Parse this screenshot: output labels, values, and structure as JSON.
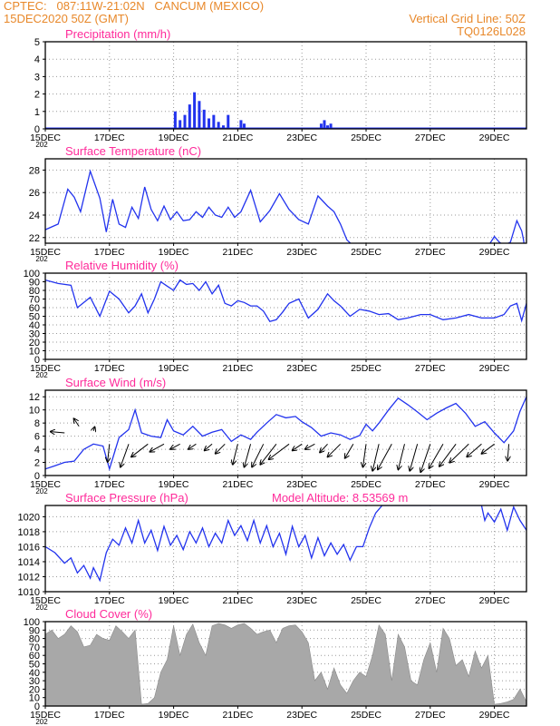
{
  "header": {
    "line1": "CPTEC:   087:11W-21:02N   CANCUM (MEXICO)",
    "line2": "15DEC2020 50Z (GMT)",
    "vgrid": "Vertical Grid Line: 50Z",
    "code": "TQ0126L028"
  },
  "colors": {
    "header": "#e8882a",
    "title": "#ff2a9a",
    "series": "#2233ee",
    "cloud": "#a8a8a8",
    "wind": "#000000"
  },
  "x_axis": {
    "labels": [
      "15DEC",
      "17DEC",
      "19DEC",
      "21DEC",
      "23DEC",
      "25DEC",
      "27DEC",
      "29DEC"
    ],
    "year_fragment": "202"
  },
  "chart_data": [
    {
      "id": "precip",
      "type": "bar",
      "title": "Precipitation (mm/h)",
      "ylim": [
        0,
        5
      ],
      "yticks": [
        0,
        1,
        2,
        3,
        4,
        5
      ],
      "x": [
        4.05,
        4.2,
        4.35,
        4.5,
        4.65,
        4.8,
        4.95,
        5.1,
        5.25,
        5.4,
        5.55,
        5.7,
        6.1,
        6.2,
        6.3,
        8.6,
        8.7,
        8.8,
        8.9
      ],
      "values": [
        1.0,
        0.5,
        0.8,
        1.4,
        2.1,
        1.6,
        1.1,
        0.6,
        0.8,
        0.4,
        0.2,
        0.8,
        0.5,
        0.3,
        0.0,
        0.3,
        0.5,
        0.2,
        0.3
      ]
    },
    {
      "id": "temp",
      "type": "line",
      "title": "Surface Temperature (nC)",
      "ylim": [
        21.5,
        29
      ],
      "yticks": [
        22,
        24,
        26,
        28
      ],
      "x": [
        0,
        0.4,
        0.7,
        0.9,
        1.1,
        1.4,
        1.7,
        1.9,
        2.1,
        2.3,
        2.5,
        2.7,
        2.9,
        3.1,
        3.3,
        3.5,
        3.7,
        3.9,
        4.1,
        4.3,
        4.5,
        4.7,
        4.9,
        5.1,
        5.3,
        5.5,
        5.7,
        5.9,
        6.1,
        6.4,
        6.7,
        7.0,
        7.3,
        7.6,
        7.9,
        8.2,
        8.5,
        8.8,
        9.0,
        9.2,
        9.4,
        9.7,
        10.0,
        10.3,
        10.6,
        10.8,
        10.9,
        11.3,
        11.5,
        12.0,
        12.5,
        13.0,
        13.5,
        13.8,
        14.0,
        14.15,
        14.3,
        14.5,
        14.7,
        14.85,
        14.9,
        14.95
      ],
      "values": [
        22.7,
        23.2,
        26.3,
        25.6,
        24.3,
        27.9,
        25.5,
        22.5,
        25.4,
        23.2,
        22.9,
        24.7,
        23.7,
        26.5,
        24.5,
        23.5,
        24.8,
        23.6,
        24.3,
        23.5,
        23.6,
        24.3,
        23.8,
        24.7,
        24.0,
        23.8,
        24.7,
        23.8,
        24.3,
        26.2,
        23.4,
        24.4,
        25.9,
        24.5,
        23.6,
        23.2,
        25.7,
        24.8,
        24.3,
        23.2,
        21.8,
        21.0,
        21.4,
        21.2,
        20.8,
        21.2,
        20.8,
        20.6,
        20.4,
        20.2,
        20.5,
        20.4,
        20.6,
        21.2,
        22.1,
        21.6,
        21.3,
        21.6,
        23.5,
        22.6,
        21.9,
        21.0
      ]
    },
    {
      "id": "rh",
      "type": "line",
      "title": "Relative Humidity (%)",
      "ylim": [
        0,
        100
      ],
      "yticks": [
        0,
        10,
        20,
        30,
        40,
        50,
        60,
        70,
        80,
        90,
        100
      ],
      "x": [
        0,
        0.4,
        0.8,
        1.0,
        1.4,
        1.7,
        2.0,
        2.3,
        2.6,
        2.8,
        3.0,
        3.2,
        3.4,
        3.6,
        3.8,
        4.0,
        4.2,
        4.4,
        4.6,
        4.8,
        5.0,
        5.2,
        5.4,
        5.6,
        5.8,
        6.0,
        6.2,
        6.4,
        6.6,
        6.8,
        7.0,
        7.2,
        7.4,
        7.6,
        7.9,
        8.2,
        8.5,
        8.8,
        9.0,
        9.2,
        9.5,
        9.8,
        10.1,
        10.4,
        10.7,
        11.0,
        11.3,
        11.7,
        12.0,
        12.4,
        12.8,
        13.2,
        13.6,
        14.0,
        14.3,
        14.5,
        14.7,
        14.85,
        15.0
      ],
      "values": [
        92,
        88,
        86,
        60,
        72,
        50,
        79,
        70,
        54,
        62,
        76,
        54,
        70,
        90,
        85,
        80,
        92,
        87,
        88,
        80,
        90,
        76,
        86,
        65,
        62,
        68,
        66,
        62,
        62,
        56,
        44,
        46,
        55,
        65,
        70,
        48,
        58,
        76,
        68,
        62,
        50,
        58,
        56,
        52,
        53,
        46,
        48,
        52,
        52,
        46,
        48,
        52,
        48,
        48,
        52,
        62,
        65,
        45,
        65
      ]
    },
    {
      "id": "wind",
      "type": "line",
      "title": "Surface Wind (m/s)",
      "ylim": [
        0,
        13
      ],
      "yticks": [
        0,
        2,
        4,
        6,
        8,
        10,
        12
      ],
      "x": [
        0,
        0.3,
        0.6,
        0.9,
        1.2,
        1.5,
        1.8,
        2.0,
        2.3,
        2.6,
        2.8,
        3.0,
        3.3,
        3.6,
        3.8,
        4.0,
        4.3,
        4.6,
        4.9,
        5.2,
        5.5,
        5.8,
        6.1,
        6.4,
        6.6,
        6.9,
        7.2,
        7.5,
        7.8,
        8.0,
        8.3,
        8.6,
        8.9,
        9.2,
        9.5,
        9.8,
        10.0,
        10.2,
        10.4,
        10.7,
        11.0,
        11.3,
        11.6,
        11.9,
        12.2,
        12.5,
        12.8,
        13.1,
        13.4,
        13.7,
        14.0,
        14.3,
        14.6,
        14.8,
        15.0
      ],
      "values": [
        1.0,
        1.5,
        2.0,
        2.2,
        4.0,
        4.8,
        4.5,
        1.0,
        5.8,
        7.0,
        10.0,
        6.5,
        6.0,
        5.8,
        8.5,
        6.8,
        6.2,
        7.5,
        6.0,
        6.6,
        7.0,
        5.2,
        6.2,
        5.5,
        6.6,
        8.0,
        9.3,
        8.8,
        9.0,
        8.2,
        7.3,
        6.0,
        6.5,
        6.2,
        5.5,
        6.1,
        7.8,
        6.8,
        8.0,
        10.0,
        11.8,
        10.8,
        9.7,
        8.5,
        9.5,
        10.3,
        11.0,
        9.5,
        7.5,
        8.2,
        6.5,
        5.0,
        6.8,
        9.8,
        12.0
      ],
      "arrows_x": [
        0.6,
        1.05,
        1.5,
        2.0,
        2.6,
        3.2,
        3.7,
        4.2,
        4.7,
        5.2,
        5.6,
        6.0,
        6.4,
        6.8,
        7.2,
        7.6,
        8.0,
        8.4,
        8.8,
        9.2,
        9.6,
        10.0,
        10.4,
        10.8,
        11.2,
        11.6,
        12.0,
        12.4,
        12.8,
        13.2,
        13.6,
        14.0,
        14.45
      ],
      "arrows_y": [
        6.5,
        7.5,
        6.8,
        4.8,
        4.8,
        4.8,
        4.8,
        4.8,
        4.8,
        4.8,
        4.8,
        4.8,
        4.8,
        4.8,
        4.8,
        4.8,
        4.8,
        4.8,
        4.8,
        4.8,
        4.8,
        4.8,
        4.8,
        4.8,
        4.8,
        4.8,
        4.8,
        4.8,
        4.8,
        4.8,
        4.8,
        4.8,
        4.8
      ],
      "arrows_u": [
        -2.2,
        -0.8,
        0.2,
        -0.3,
        -1.3,
        -2.6,
        -2.2,
        -1.5,
        -1.2,
        -1.2,
        -1.5,
        -0.8,
        -1.0,
        -1.8,
        -2.5,
        -3.2,
        -1.5,
        -1.5,
        -1.2,
        -2.0,
        -1.3,
        -0.5,
        -1.0,
        -2.2,
        -1.0,
        -1.2,
        -1.5,
        -2.2,
        -2.6,
        -3.0,
        -2.3,
        -2.0,
        -0.2
      ],
      "arrows_v": [
        0.2,
        1.2,
        0.6,
        -2.8,
        -3.6,
        -2.0,
        -1.2,
        -0.8,
        -0.8,
        -1.0,
        -1.5,
        -3.2,
        -3.6,
        -3.6,
        -3.2,
        -2.4,
        -1.0,
        -0.8,
        -1.3,
        -2.0,
        -2.2,
        -3.6,
        -4.2,
        -4.0,
        -4.0,
        -4.2,
        -4.4,
        -3.8,
        -3.5,
        -2.9,
        -2.0,
        -1.5,
        -2.6
      ]
    },
    {
      "id": "press",
      "type": "line",
      "title": "Surface Pressure (hPa)",
      "subtitle": "Model Altitude: 8.53569 m",
      "ylim": [
        1010,
        1021.5
      ],
      "yticks": [
        1010,
        1012,
        1014,
        1016,
        1018,
        1020
      ],
      "x": [
        0,
        0.3,
        0.6,
        0.8,
        1.0,
        1.2,
        1.4,
        1.5,
        1.7,
        1.9,
        2.1,
        2.3,
        2.5,
        2.7,
        2.9,
        3.1,
        3.3,
        3.5,
        3.7,
        3.9,
        4.1,
        4.3,
        4.5,
        4.7,
        4.9,
        5.1,
        5.3,
        5.5,
        5.7,
        5.9,
        6.1,
        6.3,
        6.5,
        6.7,
        6.9,
        7.1,
        7.3,
        7.5,
        7.7,
        7.9,
        8.1,
        8.3,
        8.5,
        8.7,
        8.9,
        9.1,
        9.3,
        9.5,
        9.7,
        9.9,
        10.1,
        10.3,
        10.5,
        13.6,
        13.7,
        13.8,
        14.0,
        14.2,
        14.4,
        14.6,
        14.8,
        15.0
      ],
      "values": [
        1016.0,
        1015.2,
        1013.8,
        1014.5,
        1012.5,
        1013.5,
        1011.8,
        1013.2,
        1011.5,
        1015.2,
        1017.0,
        1016.2,
        1018.5,
        1016.5,
        1019.5,
        1016.5,
        1018.2,
        1015.5,
        1018.7,
        1016.2,
        1017.5,
        1015.6,
        1018.0,
        1016.5,
        1018.5,
        1016.0,
        1017.8,
        1016.5,
        1019.5,
        1017.5,
        1018.8,
        1016.8,
        1019.5,
        1016.5,
        1018.8,
        1016.0,
        1017.8,
        1015.0,
        1018.7,
        1016.0,
        1017.5,
        1014.5,
        1017.2,
        1014.8,
        1016.5,
        1015.0,
        1016.3,
        1014.2,
        1016.0,
        1016.0,
        1018.5,
        1020.5,
        1021.5,
        1021.5,
        1019.5,
        1020.5,
        1019.3,
        1021.0,
        1018.2,
        1021.3,
        1019.5,
        1018.2
      ]
    },
    {
      "id": "cloud",
      "type": "area",
      "title": "Cloud Cover (%)",
      "ylim": [
        0,
        100
      ],
      "yticks": [
        0,
        10,
        20,
        30,
        40,
        50,
        60,
        70,
        80,
        90,
        100
      ],
      "x": [
        0,
        0.2,
        0.4,
        0.6,
        0.8,
        1.0,
        1.2,
        1.4,
        1.6,
        1.8,
        2.0,
        2.2,
        2.4,
        2.6,
        2.8,
        3.0,
        3.2,
        3.4,
        3.6,
        3.8,
        4.0,
        4.2,
        4.4,
        4.6,
        4.8,
        5.0,
        5.2,
        5.4,
        5.6,
        5.8,
        6.0,
        6.2,
        6.4,
        6.6,
        6.8,
        7.0,
        7.2,
        7.4,
        7.6,
        7.8,
        8.0,
        8.2,
        8.4,
        8.6,
        8.8,
        9.0,
        9.2,
        9.4,
        9.6,
        9.8,
        10.0,
        10.2,
        10.4,
        10.6,
        10.8,
        11.0,
        11.2,
        11.4,
        11.6,
        11.8,
        12.0,
        12.2,
        12.4,
        12.6,
        12.8,
        13.0,
        13.2,
        13.4,
        13.6,
        13.8,
        14.0,
        14.2,
        14.4,
        14.6,
        14.8,
        15.0
      ],
      "values": [
        85,
        90,
        80,
        85,
        95,
        88,
        70,
        72,
        85,
        80,
        78,
        95,
        88,
        80,
        90,
        2,
        3,
        10,
        40,
        55,
        95,
        60,
        85,
        97,
        75,
        60,
        95,
        98,
        96,
        92,
        96,
        98,
        92,
        85,
        88,
        90,
        75,
        92,
        95,
        96,
        88,
        75,
        30,
        40,
        20,
        45,
        25,
        15,
        30,
        40,
        35,
        60,
        96,
        85,
        30,
        85,
        70,
        30,
        25,
        55,
        75,
        40,
        92,
        80,
        48,
        55,
        35,
        65,
        45,
        60,
        2,
        3,
        5,
        8,
        20,
        5
      ]
    }
  ]
}
